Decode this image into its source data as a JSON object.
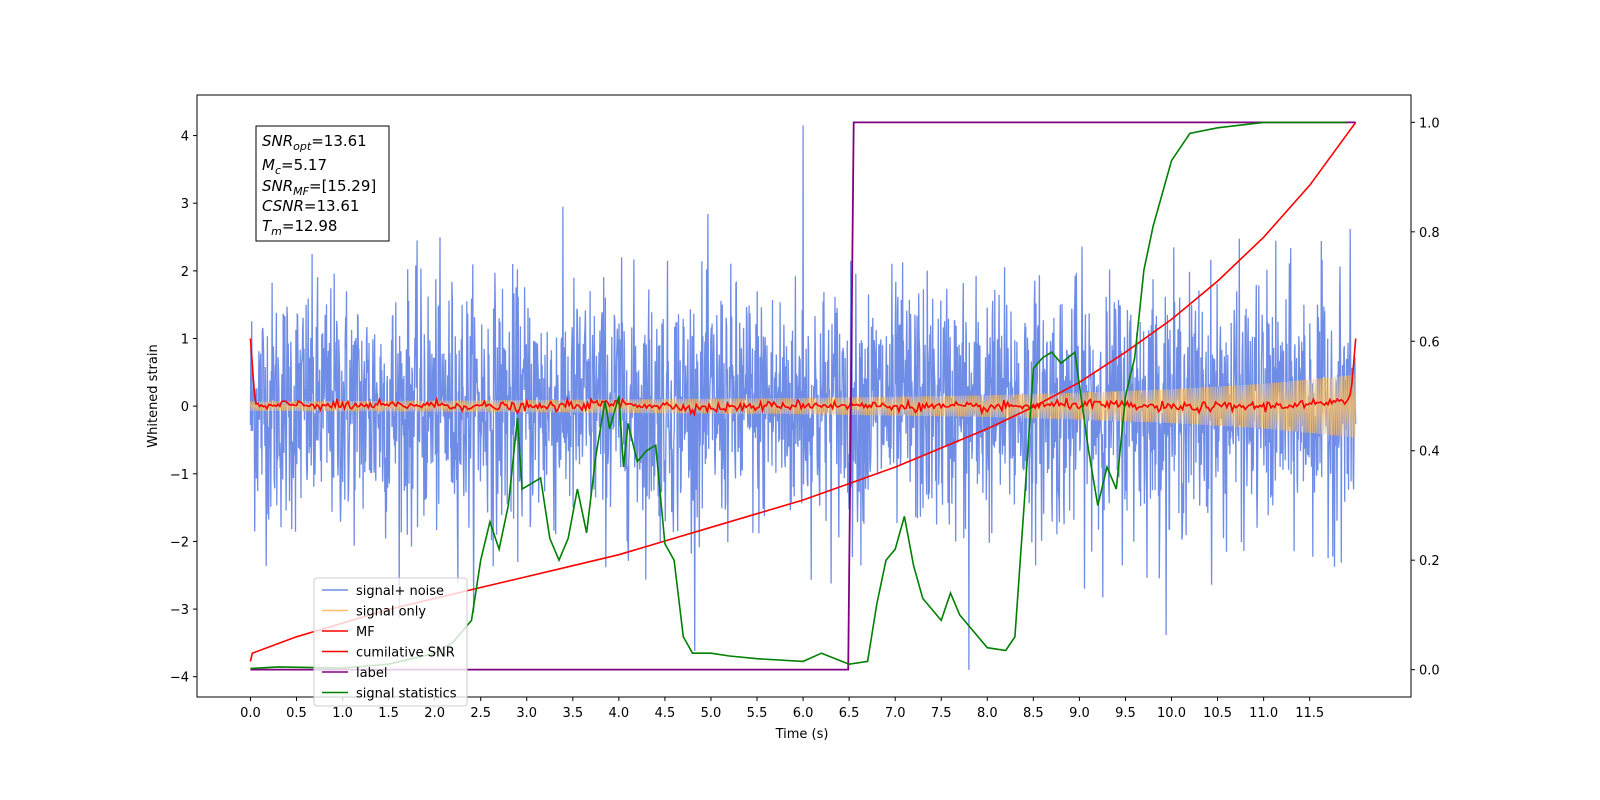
{
  "chart_data": {
    "type": "line",
    "title": "",
    "xlabel": "Time (s)",
    "ylabel": "Whitened strain",
    "ylabel_right": "",
    "xlim": [
      -0.58,
      12.6
    ],
    "ylim": [
      -4.3,
      4.6
    ],
    "ylim_right": [
      -0.05,
      1.05
    ],
    "x_ticks": [
      0.0,
      0.5,
      1.0,
      1.5,
      2.0,
      2.5,
      3.0,
      3.5,
      4.0,
      4.5,
      5.0,
      5.5,
      6.0,
      6.5,
      7.0,
      7.5,
      8.0,
      8.5,
      9.0,
      9.5,
      10.0,
      10.5,
      11.0,
      11.5
    ],
    "x_tick_labels": [
      "0.0",
      "0.5",
      "1.0",
      "1.5",
      "2.0",
      "2.5",
      "3.0",
      "3.5",
      "4.0",
      "4.5",
      "5.0",
      "5.5",
      "6.0",
      "6.5",
      "7.0",
      "7.5",
      "8.0",
      "8.5",
      "9.0",
      "9.5",
      "10.0",
      "10.5",
      "11.0",
      "11.5"
    ],
    "y_ticks": [
      -4,
      -3,
      -2,
      -1,
      0,
      1,
      2,
      3,
      4
    ],
    "y_tick_labels": [
      "−4",
      "−3",
      "−2",
      "−1",
      "0",
      "1",
      "2",
      "3",
      "4"
    ],
    "y_ticks_right": [
      0.0,
      0.2,
      0.4,
      0.6,
      0.8,
      1.0
    ],
    "y_tick_labels_right": [
      "0.0",
      "0.2",
      "0.4",
      "0.6",
      "0.8",
      "1.0"
    ],
    "grid": false,
    "legend_position": "lower-left",
    "legend": [
      {
        "label": "signal+ noise",
        "color": "#6f8de6"
      },
      {
        "label": "signal only",
        "color": "#ffc061"
      },
      {
        "label": "MF",
        "color": "#ff0000"
      },
      {
        "label": "cumilative SNR",
        "color": "#ff0000"
      },
      {
        "label": "label",
        "color": "#800080"
      },
      {
        "label": "signal statistics",
        "color": "#008000"
      }
    ],
    "series": [
      {
        "name": "signal+ noise",
        "axis": "left",
        "color": "#6f8de6",
        "description": "dense whitened noise, amplitude about ±2.5 (spikes to about ±3.9)",
        "x_range": [
          0.0,
          12.0
        ],
        "amplitude": 0.9,
        "peak_max": 4.15,
        "peak_min": -3.9
      },
      {
        "name": "signal only",
        "axis": "left",
        "color": "#ffc061",
        "description": "chirp envelope growing from about ±0.07 to ±0.45",
        "envelope_x": [
          0.0,
          2.0,
          4.0,
          6.0,
          8.0,
          9.0,
          10.0,
          11.0,
          11.9,
          12.0
        ],
        "envelope_y": [
          0.07,
          0.08,
          0.1,
          0.12,
          0.16,
          0.2,
          0.25,
          0.33,
          0.45,
          0.47
        ]
      },
      {
        "name": "MF",
        "axis": "left",
        "color": "#ff0000",
        "description": "matched filter output near zero with small wiggles; 1.0 at both ends",
        "x": [
          0.0,
          0.05,
          0.1,
          0.5,
          1.0,
          2.0,
          3.0,
          4.0,
          5.0,
          6.0,
          7.0,
          8.0,
          9.0,
          10.0,
          11.0,
          11.9,
          11.95,
          12.0
        ],
        "y": [
          1.0,
          0.05,
          -0.02,
          0.03,
          0.0,
          0.02,
          -0.02,
          0.04,
          -0.03,
          0.02,
          0.0,
          -0.02,
          0.03,
          -0.02,
          0.0,
          0.05,
          0.2,
          1.0
        ]
      },
      {
        "name": "cumilative SNR",
        "axis": "right",
        "color": "#ff0000",
        "x": [
          0.0,
          0.02,
          0.5,
          1.0,
          1.5,
          2.0,
          2.5,
          3.0,
          3.5,
          4.0,
          4.5,
          5.0,
          5.5,
          6.0,
          6.5,
          7.0,
          7.5,
          8.0,
          8.5,
          9.0,
          9.5,
          10.0,
          10.5,
          11.0,
          11.5,
          12.0
        ],
        "y": [
          0.015,
          0.03,
          0.06,
          0.085,
          0.11,
          0.13,
          0.15,
          0.17,
          0.19,
          0.21,
          0.235,
          0.26,
          0.285,
          0.31,
          0.34,
          0.37,
          0.405,
          0.44,
          0.48,
          0.525,
          0.58,
          0.64,
          0.71,
          0.79,
          0.885,
          1.0
        ]
      },
      {
        "name": "label",
        "axis": "right",
        "color": "#800080",
        "x": [
          0.0,
          6.49,
          6.55,
          12.0
        ],
        "y": [
          0.0,
          0.0,
          1.0,
          1.0
        ]
      },
      {
        "name": "signal statistics",
        "axis": "right",
        "color": "#008000",
        "x": [
          0.0,
          0.3,
          1.0,
          1.5,
          2.0,
          2.2,
          2.4,
          2.5,
          2.6,
          2.7,
          2.8,
          2.9,
          2.95,
          3.05,
          3.15,
          3.25,
          3.35,
          3.45,
          3.55,
          3.65,
          3.75,
          3.85,
          3.9,
          4.0,
          4.05,
          4.1,
          4.2,
          4.3,
          4.4,
          4.5,
          4.6,
          4.7,
          4.8,
          5.0,
          5.2,
          5.5,
          6.0,
          6.2,
          6.5,
          6.7,
          6.8,
          6.9,
          7.0,
          7.1,
          7.2,
          7.3,
          7.4,
          7.5,
          7.6,
          7.7,
          7.8,
          8.0,
          8.2,
          8.3,
          8.4,
          8.5,
          8.6,
          8.7,
          8.8,
          8.95,
          9.1,
          9.2,
          9.3,
          9.4,
          9.5,
          9.6,
          9.7,
          9.8,
          9.9,
          10.0,
          10.2,
          10.5,
          11.0,
          11.9
        ],
        "y": [
          0.002,
          0.005,
          0.003,
          0.01,
          0.03,
          0.05,
          0.09,
          0.2,
          0.27,
          0.22,
          0.3,
          0.46,
          0.33,
          0.34,
          0.35,
          0.24,
          0.2,
          0.24,
          0.33,
          0.25,
          0.39,
          0.49,
          0.44,
          0.5,
          0.37,
          0.45,
          0.38,
          0.4,
          0.41,
          0.23,
          0.2,
          0.06,
          0.03,
          0.03,
          0.025,
          0.02,
          0.015,
          0.03,
          0.01,
          0.015,
          0.12,
          0.2,
          0.22,
          0.28,
          0.19,
          0.13,
          0.11,
          0.09,
          0.14,
          0.1,
          0.08,
          0.04,
          0.035,
          0.06,
          0.3,
          0.55,
          0.57,
          0.58,
          0.56,
          0.58,
          0.4,
          0.3,
          0.37,
          0.33,
          0.5,
          0.57,
          0.73,
          0.81,
          0.87,
          0.93,
          0.98,
          0.99,
          1.0,
          1.0
        ]
      }
    ]
  },
  "stats_box": {
    "line1": {
      "main": "SNR",
      "sub": "opt",
      "value": "=13.61"
    },
    "line2": {
      "main": "M",
      "sub": "c",
      "value": "=5.17"
    },
    "line3": {
      "main": "SNR",
      "sub": "MF",
      "value": "=[15.29]"
    },
    "line4": {
      "main": "CSNR",
      "sub": "",
      "value": "=13.61"
    },
    "line5": {
      "main": "T",
      "sub": "m",
      "value": "=12.98"
    }
  }
}
